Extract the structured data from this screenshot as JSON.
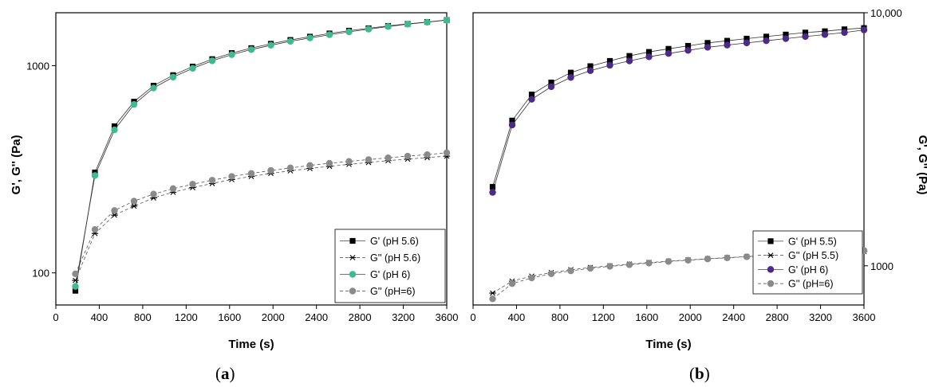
{
  "chart_data": [
    {
      "type": "line",
      "panel_label": "a",
      "xlabel": "Time (s)",
      "ylabel": "G', G'' (Pa)",
      "xlim": [
        0,
        3600
      ],
      "ylim": [
        70,
        1800
      ],
      "yscale": "log",
      "xticks": [
        0,
        400,
        800,
        1200,
        1600,
        2000,
        2400,
        2800,
        3200,
        3600
      ],
      "yticks": [
        100,
        1000
      ],
      "ytick_labels": [
        "100",
        "1000"
      ],
      "y_axis_side": "left",
      "legend_position": "bottom-right",
      "x": [
        180,
        360,
        540,
        720,
        900,
        1080,
        1260,
        1440,
        1620,
        1800,
        1980,
        2160,
        2340,
        2520,
        2700,
        2880,
        3060,
        3240,
        3420,
        3600
      ],
      "series": [
        {
          "name": "G' (pH 5.6)",
          "marker": "square",
          "color": "#000000",
          "line": "solid",
          "values": [
            82,
            305,
            510,
            670,
            800,
            900,
            990,
            1075,
            1150,
            1215,
            1275,
            1330,
            1380,
            1430,
            1475,
            1515,
            1555,
            1590,
            1625,
            1660
          ]
        },
        {
          "name": "G'' (pH 5.6)",
          "marker": "asterisk",
          "color": "#000000",
          "line": "dashed",
          "values": [
            92,
            155,
            190,
            210,
            230,
            245,
            258,
            270,
            282,
            292,
            302,
            311,
            319,
            327,
            334,
            341,
            348,
            354,
            360,
            366
          ]
        },
        {
          "name": "G' (pH 6)",
          "marker": "circle",
          "color": "#3dbb8f",
          "line": "solid",
          "values": [
            86,
            295,
            490,
            650,
            780,
            880,
            970,
            1055,
            1130,
            1195,
            1255,
            1310,
            1360,
            1410,
            1455,
            1500,
            1545,
            1585,
            1620,
            1660
          ]
        },
        {
          "name": "G'' (pH=6)",
          "marker": "circle",
          "color": "#8a8a8a",
          "line": "dashed",
          "values": [
            99,
            162,
            200,
            222,
            240,
            255,
            268,
            280,
            292,
            302,
            312,
            321,
            330,
            338,
            345,
            352,
            359,
            366,
            372,
            380
          ]
        }
      ]
    },
    {
      "type": "line",
      "panel_label": "b",
      "xlabel": "Time (s)",
      "ylabel": "G', G'' (Pa)",
      "xlim": [
        0,
        3600
      ],
      "ylim": [
        700,
        10000
      ],
      "yscale": "log",
      "xticks": [
        0,
        400,
        800,
        1200,
        1600,
        2000,
        2400,
        2800,
        3200,
        3600
      ],
      "yticks": [
        1000,
        10000
      ],
      "ytick_labels": [
        "1000",
        "10,000"
      ],
      "y_axis_side": "right",
      "legend_position": "bottom-right",
      "x": [
        180,
        360,
        540,
        720,
        900,
        1080,
        1260,
        1440,
        1620,
        1800,
        1980,
        2160,
        2340,
        2520,
        2700,
        2880,
        3060,
        3240,
        3420,
        3600
      ],
      "series": [
        {
          "name": "G' (pH 5.5)",
          "marker": "square",
          "color": "#000000",
          "line": "solid",
          "values": [
            2050,
            3750,
            4750,
            5300,
            5800,
            6150,
            6450,
            6750,
            7000,
            7200,
            7400,
            7600,
            7750,
            7900,
            8050,
            8200,
            8350,
            8450,
            8600,
            8700
          ]
        },
        {
          "name": "G'' (pH 5.5)",
          "marker": "asterisk",
          "color": "#000000",
          "line": "dashed",
          "values": [
            780,
            870,
            910,
            940,
            965,
            985,
            1000,
            1015,
            1030,
            1043,
            1055,
            1066,
            1077,
            1087,
            1097,
            1106,
            1115,
            1124,
            1132,
            1140
          ]
        },
        {
          "name": "G' (pH 6)",
          "marker": "circle",
          "color": "#4b2a8a",
          "line": "solid",
          "values": [
            1950,
            3600,
            4550,
            5100,
            5550,
            5900,
            6200,
            6450,
            6700,
            6900,
            7100,
            7300,
            7450,
            7600,
            7750,
            7900,
            8050,
            8200,
            8350,
            8550
          ]
        },
        {
          "name": "G'' (pH=6)",
          "marker": "circle",
          "color": "#8a8a8a",
          "line": "dashed",
          "values": [
            740,
            850,
            895,
            930,
            955,
            977,
            995,
            1010,
            1025,
            1040,
            1052,
            1064,
            1075,
            1086,
            1096,
            1106,
            1116,
            1126,
            1136,
            1150
          ]
        }
      ]
    }
  ]
}
